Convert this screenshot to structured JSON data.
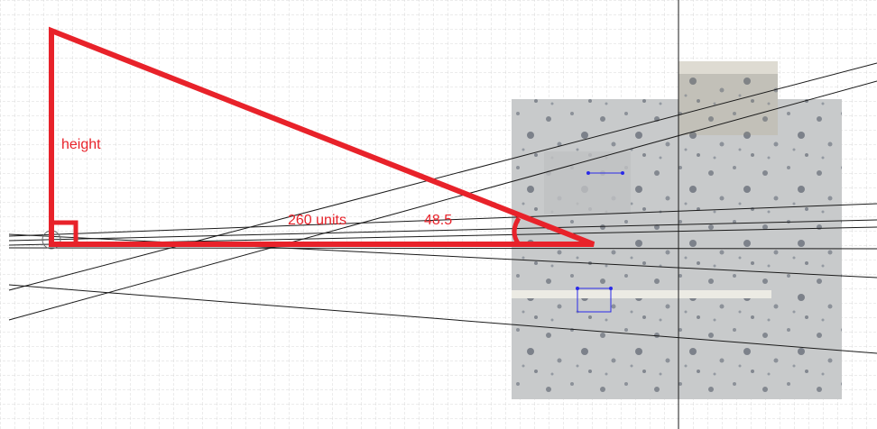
{
  "diagram": {
    "labels": {
      "height": "height",
      "distance": "260 units",
      "angle": "48.5"
    },
    "colors": {
      "triangle": "#e8222a",
      "grid_minor": "#d4d4d4",
      "grid_major": "#bdbdbd",
      "lines": "#1a1a1a",
      "image_bg": "#c6c8c9",
      "marker": "#2a2ae8"
    },
    "elements": [
      "right-angle-marker",
      "angle-arc",
      "reference-image",
      "guide-lines",
      "crosshair-line"
    ]
  }
}
